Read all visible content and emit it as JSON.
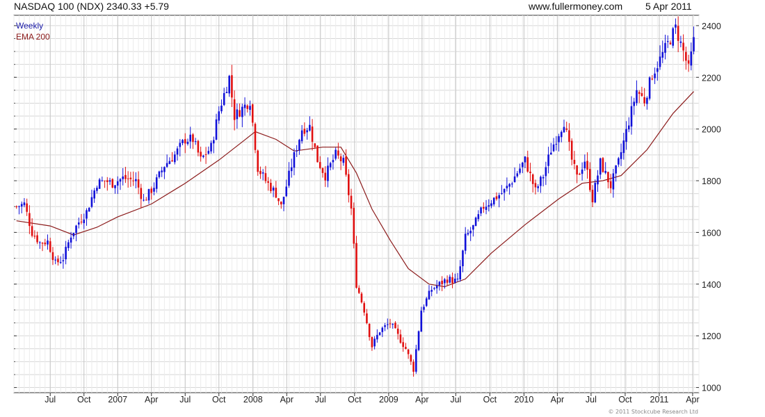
{
  "header": {
    "title": "NASDAQ 100 (NDX) 2340.33 +5.79",
    "site": "www.fullermoney.com",
    "date": "5 Apr 2011"
  },
  "footer": {
    "copyright": "© 2011 Stockcube Research Ltd"
  },
  "colors": {
    "up": "#1010d8",
    "down": "#e01010",
    "ema": "#8b1a1a",
    "grid": "#d6d6d6",
    "legend_weekly": "#1a1aa8",
    "legend_ema": "#8b1a1a"
  },
  "chart_data": {
    "type": "candlestick",
    "title": "NASDAQ 100 (NDX) 2340.33 +5.79",
    "interval": "Weekly",
    "legend": [
      "Weekly",
      "EMA 200"
    ],
    "legend_position": "top-left",
    "grid": true,
    "ylim": [
      980,
      2440
    ],
    "y_ticks": [
      1000,
      1200,
      1400,
      1600,
      1800,
      2000,
      2200,
      2400
    ],
    "x_ticks": [
      {
        "label": "Jul",
        "date": "2006-07-03"
      },
      {
        "label": "Oct",
        "date": "2006-10-02"
      },
      {
        "label": "2007",
        "date": "2007-01-01"
      },
      {
        "label": "Apr",
        "date": "2007-04-02"
      },
      {
        "label": "Jul",
        "date": "2007-07-02"
      },
      {
        "label": "Oct",
        "date": "2007-10-01"
      },
      {
        "label": "2008",
        "date": "2008-01-01"
      },
      {
        "label": "Apr",
        "date": "2008-04-01"
      },
      {
        "label": "Jul",
        "date": "2008-07-01"
      },
      {
        "label": "Oct",
        "date": "2008-10-01"
      },
      {
        "label": "2009",
        "date": "2009-01-01"
      },
      {
        "label": "Apr",
        "date": "2009-04-01"
      },
      {
        "label": "Jul",
        "date": "2009-07-01"
      },
      {
        "label": "Oct",
        "date": "2009-10-01"
      },
      {
        "label": "2010",
        "date": "2010-01-01"
      },
      {
        "label": "Apr",
        "date": "2010-04-01"
      },
      {
        "label": "Jul",
        "date": "2010-07-01"
      },
      {
        "label": "Oct",
        "date": "2010-10-01"
      },
      {
        "label": "2011",
        "date": "2011-01-01"
      },
      {
        "label": "Apr",
        "date": "2011-04-01"
      }
    ],
    "price_path": [
      [
        "2006-04-03",
        1700
      ],
      [
        "2006-04-24",
        1710
      ],
      [
        "2006-05-15",
        1600
      ],
      [
        "2006-06-05",
        1560
      ],
      [
        "2006-06-26",
        1565
      ],
      [
        "2006-07-17",
        1480
      ],
      [
        "2006-08-07",
        1500
      ],
      [
        "2006-08-28",
        1590
      ],
      [
        "2006-09-18",
        1640
      ],
      [
        "2006-10-09",
        1680
      ],
      [
        "2006-11-06",
        1790
      ],
      [
        "2006-11-27",
        1800
      ],
      [
        "2006-12-18",
        1790
      ],
      [
        "2007-01-15",
        1810
      ],
      [
        "2007-02-19",
        1800
      ],
      [
        "2007-03-12",
        1720
      ],
      [
        "2007-04-09",
        1780
      ],
      [
        "2007-05-07",
        1860
      ],
      [
        "2007-06-04",
        1900
      ],
      [
        "2007-07-02",
        1960
      ],
      [
        "2007-07-23",
        1960
      ],
      [
        "2007-08-13",
        1880
      ],
      [
        "2007-09-10",
        1930
      ],
      [
        "2007-10-01",
        2070
      ],
      [
        "2007-10-29",
        2200
      ],
      [
        "2007-11-12",
        2050
      ],
      [
        "2007-12-03",
        2080
      ],
      [
        "2007-12-24",
        2110
      ],
      [
        "2008-01-14",
        1850
      ],
      [
        "2008-02-04",
        1800
      ],
      [
        "2008-03-03",
        1750
      ],
      [
        "2008-03-17",
        1700
      ],
      [
        "2008-04-14",
        1860
      ],
      [
        "2008-05-12",
        2000
      ],
      [
        "2008-06-02",
        2010
      ],
      [
        "2008-06-23",
        1880
      ],
      [
        "2008-07-14",
        1820
      ],
      [
        "2008-08-11",
        1900
      ],
      [
        "2008-09-01",
        1870
      ],
      [
        "2008-09-22",
        1690
      ],
      [
        "2008-10-06",
        1400
      ],
      [
        "2008-10-27",
        1300
      ],
      [
        "2008-11-17",
        1160
      ],
      [
        "2008-12-08",
        1220
      ],
      [
        "2009-01-05",
        1250
      ],
      [
        "2009-01-26",
        1200
      ],
      [
        "2009-02-16",
        1150
      ],
      [
        "2009-03-09",
        1070
      ],
      [
        "2009-03-30",
        1300
      ],
      [
        "2009-04-27",
        1380
      ],
      [
        "2009-05-18",
        1400
      ],
      [
        "2009-06-08",
        1420
      ],
      [
        "2009-07-06",
        1410
      ],
      [
        "2009-07-27",
        1580
      ],
      [
        "2009-08-17",
        1620
      ],
      [
        "2009-09-14",
        1700
      ],
      [
        "2009-10-12",
        1730
      ],
      [
        "2009-11-09",
        1760
      ],
      [
        "2009-11-30",
        1800
      ],
      [
        "2010-01-04",
        1880
      ],
      [
        "2010-02-01",
        1760
      ],
      [
        "2010-02-22",
        1820
      ],
      [
        "2010-03-15",
        1920
      ],
      [
        "2010-04-19",
        2030
      ],
      [
        "2010-05-10",
        1880
      ],
      [
        "2010-05-24",
        1810
      ],
      [
        "2010-06-14",
        1880
      ],
      [
        "2010-07-05",
        1730
      ],
      [
        "2010-07-26",
        1870
      ],
      [
        "2010-08-23",
        1780
      ],
      [
        "2010-09-13",
        1870
      ],
      [
        "2010-10-04",
        1990
      ],
      [
        "2010-11-01",
        2150
      ],
      [
        "2010-11-22",
        2110
      ],
      [
        "2010-12-13",
        2210
      ],
      [
        "2011-01-10",
        2290
      ],
      [
        "2011-02-14",
        2390
      ],
      [
        "2011-03-07",
        2300
      ],
      [
        "2011-03-21",
        2230
      ],
      [
        "2011-04-04",
        2340
      ]
    ],
    "ema_200_path": [
      [
        "2006-04-03",
        1645
      ],
      [
        "2006-07-03",
        1625
      ],
      [
        "2006-09-04",
        1590
      ],
      [
        "2006-11-06",
        1620
      ],
      [
        "2007-01-01",
        1660
      ],
      [
        "2007-04-02",
        1710
      ],
      [
        "2007-07-02",
        1790
      ],
      [
        "2007-10-01",
        1880
      ],
      [
        "2007-12-03",
        1950
      ],
      [
        "2008-01-07",
        1990
      ],
      [
        "2008-03-03",
        1960
      ],
      [
        "2008-04-21",
        1915
      ],
      [
        "2008-07-07",
        1930
      ],
      [
        "2008-08-25",
        1930
      ],
      [
        "2008-10-06",
        1830
      ],
      [
        "2008-11-17",
        1690
      ],
      [
        "2009-01-05",
        1570
      ],
      [
        "2009-02-23",
        1460
      ],
      [
        "2009-04-20",
        1400
      ],
      [
        "2009-06-01",
        1390
      ],
      [
        "2009-07-27",
        1420
      ],
      [
        "2009-10-05",
        1520
      ],
      [
        "2010-01-04",
        1630
      ],
      [
        "2010-04-05",
        1730
      ],
      [
        "2010-06-07",
        1790
      ],
      [
        "2010-08-02",
        1800
      ],
      [
        "2010-09-20",
        1820
      ],
      [
        "2010-11-29",
        1920
      ],
      [
        "2011-02-07",
        2060
      ],
      [
        "2011-04-04",
        2145
      ]
    ]
  }
}
